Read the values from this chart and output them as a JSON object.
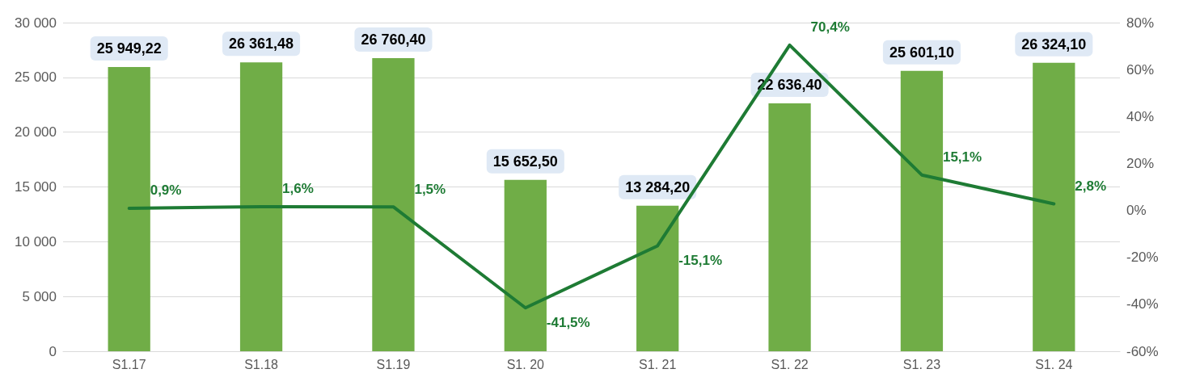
{
  "chart_data": {
    "type": "bar",
    "categories": [
      "S1.17",
      "S1.18",
      "S1.19",
      "S1. 20",
      "S1. 21",
      "S1. 22",
      "S1. 23",
      "S1. 24"
    ],
    "series": [
      {
        "color": "#70ad47",
        "values": [
          25949.22,
          26361.48,
          26760.4,
          15652.5,
          13284.2,
          22636.4,
          25601.1,
          26324.1
        ],
        "value_labels": [
          "25 949,22",
          "26 361,48",
          "26 760,40",
          "15 652,50",
          "13 284,20",
          "22 636,40",
          "25 601,10",
          "26 324,10"
        ]
      },
      {
        "type": "line",
        "axis": "y2",
        "color": "#1e7b34",
        "values": [
          0.9,
          1.6,
          1.5,
          -41.5,
          -15.1,
          70.4,
          15.1,
          2.8
        ],
        "value_labels": [
          "0,9%",
          "1,6%",
          "1,5%",
          "-41,5%",
          "-15,1%",
          "70,4%",
          "15,1%",
          "2,8%"
        ]
      }
    ],
    "ylim": [
      0,
      30000
    ],
    "yticks": [
      {
        "value": 0,
        "label": "0"
      },
      {
        "value": 5000,
        "label": "5 000"
      },
      {
        "value": 10000,
        "label": "10 000"
      },
      {
        "value": 15000,
        "label": "15 000"
      },
      {
        "value": 20000,
        "label": "20 000"
      },
      {
        "value": 25000,
        "label": "25 000"
      },
      {
        "value": 30000,
        "label": "30 000"
      }
    ],
    "y2lim": [
      -60,
      80
    ],
    "y2ticks": [
      {
        "value": -60,
        "label": "-60%"
      },
      {
        "value": -40,
        "label": "-40%"
      },
      {
        "value": -20,
        "label": "-20%"
      },
      {
        "value": 0,
        "label": "0%"
      },
      {
        "value": 20,
        "label": "20%"
      },
      {
        "value": 40,
        "label": "40%"
      },
      {
        "value": 60,
        "label": "60%"
      },
      {
        "value": 80,
        "label": "80%"
      }
    ],
    "grid": "y",
    "marker": "none",
    "line_style": "solid"
  }
}
